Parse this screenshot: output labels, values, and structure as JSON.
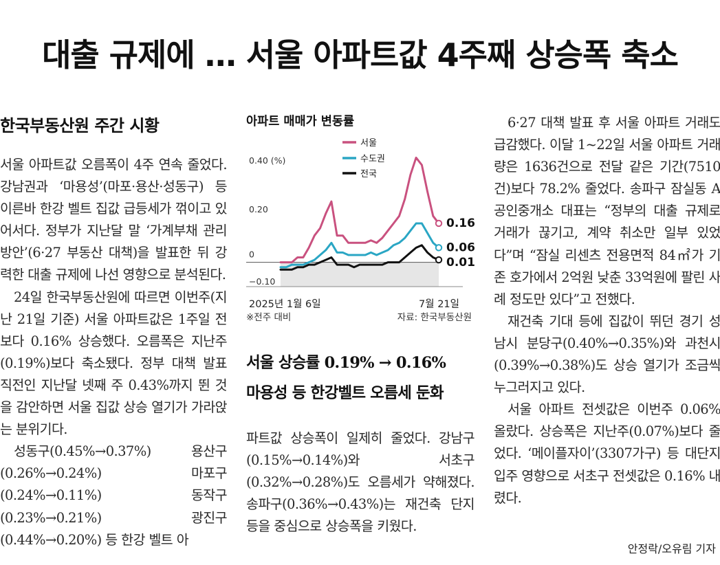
{
  "headline": "대출 규제에 … 서울 아파트값 4주째 상승폭 축소",
  "left": {
    "subhead": "한국부동산원 주간 시황",
    "paragraphs": [
      "서울 아파트값 오름폭이 4주 연속 줄었다. 강남권과 ‘마용성’(마포·용산·성동구) 등 이른바 한강 벨트 집값 급등세가 꺾이고 있어서다. 정부가 지난달 말 ‘가계부채 관리 방안’(6·27 부동산 대책)을 발표한 뒤 강력한 대출 규제에 나선 영향으로 분석된다.",
      "24일 한국부동산원에 따르면 이번주(지난 21일 기준) 서울 아파트값은 1주일 전보다 0.16% 상승했다. 오름폭은 지난주(0.19%)보다 축소됐다. 정부 대책 발표 직전인 지난달 넷째 주 0.43%까지 뛴 것을 감안하면 서울 집값 상승 열기가 가라앉는 분위기다.",
      "성동구(0.45%→0.37%) 용산구(0.26%→0.24%) 마포구(0.24%→0.11%) 동작구(0.23%→0.21%) 광진구(0.44%→0.20%) 등 한강 벨트 아"
    ]
  },
  "chart": {
    "title": "아파트 매매가 변동률",
    "note": "※전주 대비",
    "source": "자료: 한국부동산원"
  },
  "chart_data": {
    "type": "line",
    "title": "아파트 매매가 변동률",
    "unit_label": "0.40 (%)",
    "ylim": [
      -0.1,
      0.4
    ],
    "y_ticks": [
      "0.40 (%)",
      "0.20",
      "0",
      "−0.10"
    ],
    "x_labels": [
      "2025년 1월 6일",
      "7월 21일"
    ],
    "x": [
      "1/6",
      "1/13",
      "1/20",
      "1/27",
      "2/3",
      "2/10",
      "2/17",
      "2/24",
      "3/3",
      "3/10",
      "3/17",
      "3/24",
      "3/31",
      "4/7",
      "4/14",
      "4/21",
      "4/28",
      "5/5",
      "5/12",
      "5/19",
      "5/26",
      "6/2",
      "6/9",
      "6/16",
      "6/23",
      "6/30",
      "7/7",
      "7/14",
      "7/21"
    ],
    "series": [
      {
        "name": "서울",
        "color": "#c9517f",
        "values": [
          0.0,
          0.0,
          0.0,
          0.02,
          0.02,
          0.06,
          0.11,
          0.14,
          0.2,
          0.25,
          0.11,
          0.11,
          0.08,
          0.08,
          0.08,
          0.08,
          0.09,
          0.08,
          0.1,
          0.13,
          0.16,
          0.19,
          0.26,
          0.36,
          0.43,
          0.4,
          0.29,
          0.19,
          0.16
        ]
      },
      {
        "name": "수도권",
        "color": "#2aa6c4",
        "values": [
          -0.02,
          -0.02,
          -0.01,
          -0.01,
          -0.01,
          0.0,
          0.01,
          0.03,
          0.05,
          0.08,
          0.04,
          0.04,
          0.03,
          0.03,
          0.03,
          0.03,
          0.04,
          0.03,
          0.04,
          0.05,
          0.07,
          0.08,
          0.1,
          0.13,
          0.16,
          0.16,
          0.12,
          0.08,
          0.06
        ]
      },
      {
        "name": "전국",
        "color": "#111111",
        "values": [
          -0.03,
          -0.03,
          -0.03,
          -0.02,
          -0.02,
          -0.01,
          -0.01,
          0.0,
          0.01,
          0.02,
          -0.01,
          -0.01,
          -0.01,
          -0.02,
          -0.01,
          -0.01,
          -0.01,
          -0.01,
          -0.01,
          0.0,
          0.0,
          0.0,
          0.02,
          0.04,
          0.06,
          0.07,
          0.04,
          0.02,
          0.01
        ]
      }
    ],
    "end_labels": [
      "0.16",
      "0.06",
      "0.01"
    ],
    "legend": "top-center"
  },
  "middle": {
    "highlight": [
      "서울 상승률 0.19% → 0.16%",
      "마용성 등 한강벨트 오름세 둔화"
    ],
    "paragraphs": [
      "파트값 상승폭이 일제히 줄었다. 강남구(0.15%→0.14%)와 서초구(0.32%→0.28%)도 오름세가 약해졌다. 송파구(0.36%→0.43%)는 재건축 단지 등을 중심으로 상승폭을 키웠다."
    ]
  },
  "right": {
    "paragraphs": [
      "6·27 대책 발표 후 서울 아파트 거래도 급감했다. 이달 1~22일 서울 아파트 거래량은 1636건으로 전달 같은 기간(7510건)보다 78.2% 줄었다. 송파구 잠실동 A공인중개소 대표는 “정부의 대출 규제로 거래가 끊기고, 계약 취소만 일부 있었다”며 “잠실 리센츠 전용면적 84㎡가 기존 호가에서 2억원 낮춘 33억원에 팔린 사례 정도만 있다”고 전했다.",
      "재건축 기대 등에 집값이 뛰던 경기 성남시 분당구(0.40%→0.35%)와 과천시(0.39%→0.38%)도 상승 열기가 조금씩 누그러지고 있다.",
      "서울 아파트 전셋값은 이번주 0.06% 올랐다. 상승폭은 지난주(0.07%)보다 줄었다. ‘메이플자이’(3307가구) 등 대단지 입주 영향으로 서초구 전셋값은 0.16% 내렸다."
    ],
    "byline": "안정락/오유림 기자"
  }
}
